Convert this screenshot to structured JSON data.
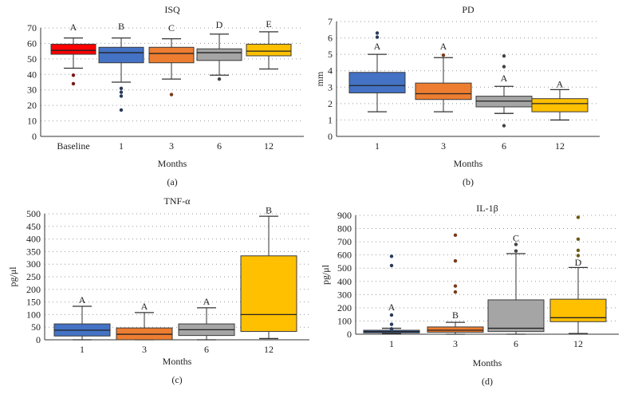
{
  "chart_data": [
    {
      "type": "box",
      "title": "ISQ",
      "xlabel": "Months",
      "ylabel": "",
      "caption": "(a)",
      "ylim": [
        0,
        70
      ],
      "yticks": [
        0,
        10,
        20,
        30,
        40,
        50,
        60,
        70
      ],
      "grid": true,
      "boxes": [
        {
          "category": "Baseline",
          "whislo": 44,
          "q1": 53,
          "med": 55.5,
          "q3": 59.5,
          "whishi": 63.5,
          "outliers": [
            39.5,
            34
          ],
          "letter": "A",
          "letter_y": 68.5,
          "color": "#ff0000",
          "outlier_color": "#7a1a1a"
        },
        {
          "category": "1",
          "whislo": 35,
          "q1": 47.5,
          "med": 54,
          "q3": 57.5,
          "whishi": 63.5,
          "outliers": [
            31,
            28.5,
            26,
            17
          ],
          "letter": "B",
          "letter_y": 69,
          "color": "#4472c4",
          "outlier_color": "#2a3a5a"
        },
        {
          "category": "3",
          "whislo": 37,
          "q1": 47.5,
          "med": 53.5,
          "q3": 57.5,
          "whishi": 63,
          "outliers": [
            27
          ],
          "letter": "C",
          "letter_y": 68,
          "color": "#ed7d31",
          "outlier_color": "#7a3a1a"
        },
        {
          "category": "6",
          "whislo": 39.5,
          "q1": 49,
          "med": 54,
          "q3": 56.5,
          "whishi": 66,
          "outliers": [
            37
          ],
          "letter": "D",
          "letter_y": 70,
          "color": "#a5a5a5",
          "outlier_color": "#444444"
        },
        {
          "category": "12",
          "whislo": 43.5,
          "q1": 52,
          "med": 55,
          "q3": 59.5,
          "whishi": 67.5,
          "outliers": [],
          "letter": "E",
          "letter_y": 70.5,
          "color": "#ffc000",
          "outlier_color": "#6a5a10"
        }
      ]
    },
    {
      "type": "box",
      "title": "PD",
      "xlabel": "Months",
      "ylabel": "mm",
      "caption": "(b)",
      "ylim": [
        0,
        7
      ],
      "yticks": [
        0,
        1,
        2,
        3,
        4,
        5,
        6,
        7
      ],
      "grid": true,
      "boxes": [
        {
          "category": "1",
          "whislo": 1.5,
          "q1": 2.65,
          "med": 3.1,
          "q3": 3.9,
          "whishi": 5.0,
          "outliers": [
            6.3,
            6.05
          ],
          "letter": "A",
          "letter_y": 5.3,
          "color": "#4472c4",
          "outlier_color": "#2a3a5a"
        },
        {
          "category": "3",
          "whislo": 1.5,
          "q1": 2.25,
          "med": 2.6,
          "q3": 3.25,
          "whishi": 4.8,
          "outliers": [
            4.95
          ],
          "letter": "A",
          "letter_y": 5.3,
          "color": "#ed7d31",
          "outlier_color": "#7a3a1a"
        },
        {
          "category": "6",
          "whislo": 1.4,
          "q1": 1.8,
          "med": 2.15,
          "q3": 2.45,
          "whishi": 3.05,
          "outliers": [
            4.9,
            4.25,
            0.65
          ],
          "letter": "A",
          "letter_y": 3.35,
          "color": "#a5a5a5",
          "outlier_color": "#444444"
        },
        {
          "category": "12",
          "whislo": 1.0,
          "q1": 1.5,
          "med": 2.0,
          "q3": 2.3,
          "whishi": 2.85,
          "outliers": [],
          "letter": "A",
          "letter_y": 3.0,
          "color": "#ffc000",
          "outlier_color": "#6a5a10"
        }
      ]
    },
    {
      "type": "box",
      "title": "TNF-α",
      "xlabel": "Months",
      "ylabel": "pg/μl",
      "caption": "(c)",
      "ylim": [
        0,
        500
      ],
      "yticks": [
        0,
        50,
        100,
        150,
        200,
        250,
        300,
        350,
        400,
        450,
        500
      ],
      "grid": true,
      "boxes": [
        {
          "category": "1",
          "whislo": 0,
          "q1": 15,
          "med": 38,
          "q3": 63,
          "whishi": 133,
          "outliers": [],
          "letter": "A",
          "letter_y": 145,
          "color": "#4472c4",
          "outlier_color": "#2a3a5a"
        },
        {
          "category": "3",
          "whislo": 0,
          "q1": 0,
          "med": 22,
          "q3": 47,
          "whishi": 108,
          "outliers": [],
          "letter": "A",
          "letter_y": 120,
          "color": "#ed7d31",
          "outlier_color": "#7a3a1a"
        },
        {
          "category": "6",
          "whislo": 0,
          "q1": 17,
          "med": 40,
          "q3": 63,
          "whishi": 127,
          "outliers": [],
          "letter": "A",
          "letter_y": 140,
          "color": "#a5a5a5",
          "outlier_color": "#444444"
        },
        {
          "category": "12",
          "whislo": 5,
          "q1": 33,
          "med": 100,
          "q3": 333,
          "whishi": 490,
          "outliers": [],
          "letter": "B",
          "letter_y": 502,
          "color": "#ffc000",
          "outlier_color": "#6a5a10"
        }
      ]
    },
    {
      "type": "box",
      "title": "IL-1β",
      "xlabel": "Months",
      "ylabel": "pg/μl",
      "caption": "(d)",
      "ylim": [
        0,
        900
      ],
      "yticks": [
        0,
        100,
        200,
        300,
        400,
        500,
        600,
        700,
        800,
        900
      ],
      "grid": true,
      "boxes": [
        {
          "category": "1",
          "whislo": 5,
          "q1": 10,
          "med": 20,
          "q3": 30,
          "whishi": 45,
          "outliers": [
            590,
            520,
            145,
            75,
            40
          ],
          "letter": "A",
          "letter_y": 180,
          "color": "#4472c4",
          "outlier_color": "#2a3a5a"
        },
        {
          "category": "3",
          "whislo": 0,
          "q1": 15,
          "med": 30,
          "q3": 55,
          "whishi": 90,
          "outliers": [
            750,
            555,
            365,
            320
          ],
          "letter": "B",
          "letter_y": 120,
          "color": "#ed7d31",
          "outlier_color": "#7a3a1a"
        },
        {
          "category": "6",
          "whislo": 0,
          "q1": 20,
          "med": 45,
          "q3": 260,
          "whishi": 610,
          "outliers": [
            680,
            630
          ],
          "letter": "C",
          "letter_y": 705,
          "color": "#a5a5a5",
          "outlier_color": "#444444"
        },
        {
          "category": "12",
          "whislo": 5,
          "q1": 95,
          "med": 125,
          "q3": 265,
          "whishi": 505,
          "outliers": [
            885,
            720,
            635,
            595
          ],
          "letter": "D",
          "letter_y": 520,
          "color": "#ffc000",
          "outlier_color": "#6a5a10"
        }
      ]
    }
  ]
}
